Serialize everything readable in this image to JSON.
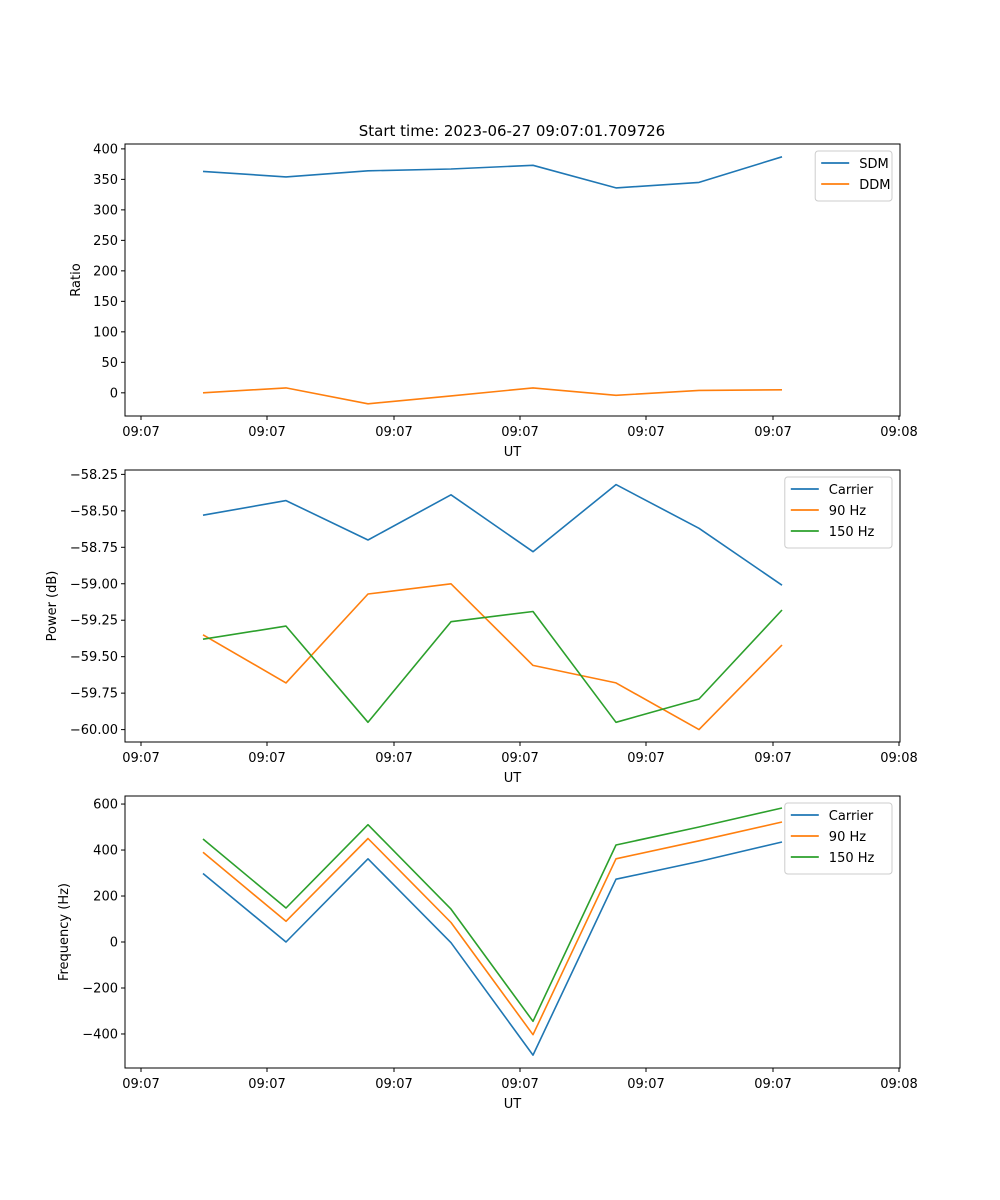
{
  "figure": {
    "title": "Start time: 2023-06-27 09:07:01.709726"
  },
  "chart_data": [
    {
      "type": "line",
      "xlabel": "UT",
      "ylabel": "Ratio",
      "x_tick_labels": [
        "09:07",
        "09:07",
        "09:07",
        "09:07",
        "09:07",
        "09:07",
        "09:08"
      ],
      "y_ticks": [
        0,
        50,
        100,
        150,
        200,
        250,
        300,
        350,
        400
      ],
      "y_tick_labels": [
        "0",
        "50",
        "100",
        "150",
        "200",
        "250",
        "300",
        "350",
        "400"
      ],
      "ylim": [
        -38,
        408
      ],
      "legend_position": "top-right",
      "series": [
        {
          "name": "SDM",
          "color": "#1f77b4",
          "values": [
            363,
            354,
            364,
            367,
            373,
            336,
            345,
            387
          ]
        },
        {
          "name": "DDM",
          "color": "#ff7f0e",
          "values": [
            0,
            8,
            -18,
            -5,
            8,
            -4,
            4,
            5
          ]
        }
      ]
    },
    {
      "type": "line",
      "xlabel": "UT",
      "ylabel": "Power (dB)",
      "x_tick_labels": [
        "09:07",
        "09:07",
        "09:07",
        "09:07",
        "09:07",
        "09:07",
        "09:08"
      ],
      "y_ticks": [
        -60.0,
        -59.75,
        -59.5,
        -59.25,
        -59.0,
        -58.75,
        -58.5,
        -58.25
      ],
      "y_tick_labels": [
        "−60.00",
        "−59.75",
        "−59.50",
        "−59.25",
        "−59.00",
        "−58.75",
        "−58.50",
        "−58.25"
      ],
      "ylim": [
        -60.085,
        -58.22
      ],
      "legend_position": "top-right",
      "series": [
        {
          "name": "Carrier",
          "color": "#1f77b4",
          "values": [
            -58.53,
            -58.43,
            -58.7,
            -58.39,
            -58.78,
            -58.32,
            -58.62,
            -59.01
          ]
        },
        {
          "name": "90 Hz",
          "color": "#ff7f0e",
          "values": [
            -59.35,
            -59.68,
            -59.07,
            -59.0,
            -59.56,
            -59.68,
            -60.0,
            -59.42
          ]
        },
        {
          "name": "150 Hz",
          "color": "#2ca02c",
          "values": [
            -59.38,
            -59.29,
            -59.95,
            -59.26,
            -59.19,
            -59.95,
            -59.79,
            -59.18
          ]
        }
      ]
    },
    {
      "type": "line",
      "xlabel": "UT",
      "ylabel": "Frequency (Hz)",
      "x_tick_labels": [
        "09:07",
        "09:07",
        "09:07",
        "09:07",
        "09:07",
        "09:07",
        "09:08"
      ],
      "y_ticks": [
        -400,
        -200,
        0,
        200,
        400,
        600
      ],
      "y_tick_labels": [
        "−400",
        "−200",
        "0",
        "200",
        "400",
        "600"
      ],
      "ylim": [
        -548,
        635
      ],
      "legend_position": "top-right",
      "series": [
        {
          "name": "Carrier",
          "color": "#1f77b4",
          "values": [
            298,
            0,
            362,
            -3,
            -492,
            273,
            350,
            435
          ]
        },
        {
          "name": "90 Hz",
          "color": "#ff7f0e",
          "values": [
            390,
            90,
            450,
            85,
            -403,
            362,
            440,
            522
          ]
        },
        {
          "name": "150 Hz",
          "color": "#2ca02c",
          "values": [
            448,
            148,
            510,
            143,
            -345,
            422,
            500,
            583
          ]
        }
      ]
    }
  ]
}
